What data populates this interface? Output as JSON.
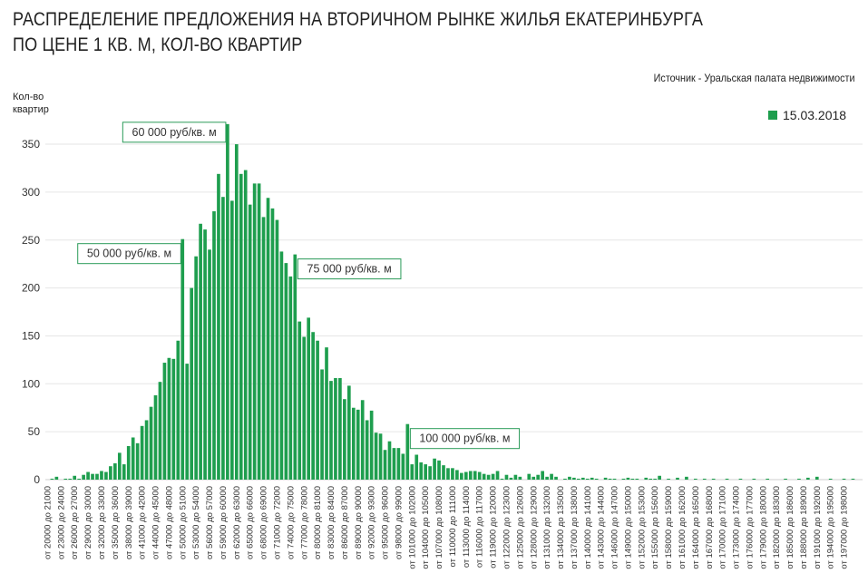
{
  "title_line1": "РАСПРЕДЕЛЕНИЕ ПРЕДЛОЖЕНИЯ НА ВТОРИЧНОМ РЫНКЕ ЖИЛЬЯ ЕКАТЕРИНБУРГА",
  "title_line2": "ПО ЦЕНЕ 1 КВ. М, КОЛ-ВО КВАРТИР",
  "source": "Источник - Уральская палата недвижимости",
  "colors": {
    "bar": "#1e9e4e",
    "annotation_border": "#2a9a58",
    "grid": "#e6e6e6"
  },
  "chart_data": {
    "type": "bar",
    "title": "РАСПРЕДЕЛЕНИЕ ПРЕДЛОЖЕНИЯ НА ВТОРИЧНОМ РЫНКЕ ЖИЛЬЯ ЕКАТЕРИНБУРГА ПО ЦЕНЕ 1 КВ. М, КОЛ-ВО КВАРТИР",
    "ylabel": "Кол-во квартир",
    "xlabel": "",
    "ylim": [
      0,
      370
    ],
    "yticks": [
      0,
      50,
      100,
      150,
      200,
      250,
      300,
      350
    ],
    "grid": true,
    "legend": {
      "position": "top-right",
      "entries": [
        "15.03.2018"
      ]
    },
    "bin_start": 20000,
    "bin_width": 1000,
    "label_every": 3,
    "series": [
      {
        "name": "15.03.2018",
        "values": [
          0,
          1,
          3,
          0,
          1,
          1,
          4,
          1,
          5,
          8,
          6,
          6,
          9,
          8,
          14,
          17,
          28,
          16,
          35,
          44,
          38,
          56,
          62,
          76,
          88,
          102,
          122,
          127,
          126,
          145,
          251,
          121,
          200,
          233,
          267,
          261,
          240,
          280,
          319,
          295,
          371,
          291,
          350,
          319,
          323,
          287,
          309,
          309,
          274,
          294,
          283,
          271,
          238,
          226,
          212,
          235,
          165,
          149,
          169,
          154,
          145,
          115,
          138,
          103,
          106,
          106,
          84,
          98,
          75,
          73,
          83,
          62,
          72,
          49,
          48,
          31,
          40,
          33,
          33,
          27,
          58,
          16,
          26,
          18,
          16,
          14,
          22,
          20,
          15,
          12,
          12,
          10,
          7,
          8,
          9,
          9,
          8,
          6,
          5,
          6,
          9,
          1,
          5,
          2,
          5,
          3,
          0,
          6,
          3,
          5,
          9,
          3,
          6,
          3,
          0,
          1,
          3,
          2,
          1,
          2,
          1,
          2,
          1,
          0,
          2,
          1,
          1,
          0,
          1,
          2,
          1,
          1,
          0,
          2,
          1,
          1,
          4,
          0,
          1,
          0,
          2,
          0,
          3,
          0,
          1,
          0,
          1,
          0,
          1,
          0,
          0,
          1,
          0,
          0,
          1,
          0,
          0,
          1,
          0,
          0,
          1,
          0,
          0,
          0,
          1,
          0,
          0,
          1,
          0,
          2,
          0,
          3,
          0,
          0,
          1,
          0,
          0,
          1,
          0,
          1
        ]
      }
    ],
    "x_tick_labels": [
      "от 20000 до 21000",
      "от 23000 до 24000",
      "от 26000 до 27000",
      "от 29000 до 30000",
      "от 32000 до 33000",
      "от 35000 до 36000",
      "от 38000 до 39000",
      "от 41000 до 42000",
      "от 44000 до 45000",
      "от 47000 до 48000",
      "от 50000 до 51000",
      "от 53000 до 54000",
      "от 56000 до 57000",
      "от 59000 до 60000",
      "от 62000 до 63000",
      "от 65000 до 66000",
      "от 68000 до 69000",
      "от 71000 до 72000",
      "от 74000 до 75000",
      "от 77000 до 78000",
      "от 80000 до 81000",
      "от 83000 до 84000",
      "от 86000 до 87000",
      "от 89000 до 90000",
      "от 92000 до 93000",
      "от 95000 до 96000",
      "от 98000 до 99000",
      "от 101000 до 102000",
      "от 104000 до 105000",
      "от 107000 до 108000",
      "от 110000 до 111000",
      "от 113000 до 114000",
      "от 116000 до 117000",
      "от 119000 до 120000",
      "от 122000 до 123000",
      "от 125000 до 126000",
      "от 128000 до 129000",
      "от 131000 до 132000",
      "от 134000 до 135000",
      "от 137000 до 138000",
      "от 140000 до 141000",
      "от 143000 до 144000",
      "от 146000 до 147000",
      "от 149000 до 150000",
      "от 152000 до 153000",
      "от 155000 до 156000",
      "от 158000 до 159000",
      "от 161000 до 162000",
      "от 164000 до 165000",
      "от 167000 до 168000",
      "от 170000 до 171000",
      "от 173000 до 174000",
      "от 176000 до 177000",
      "от 179000 до 180000",
      "от 182000 до 183000",
      "от 185000 до 186000",
      "от 188000 до 189000",
      "от 191000 до 192000",
      "от 194000 до 195000",
      "от 197000 до 198000"
    ],
    "annotations": [
      {
        "text": "60 000 руб/кв. м",
        "bin_index": 40,
        "side": "left"
      },
      {
        "text": "50 000 руб/кв. м",
        "bin_index": 30,
        "side": "left"
      },
      {
        "text": "75 000 руб/кв. м",
        "bin_index": 55,
        "side": "right"
      },
      {
        "text": "100 000 руб/кв. м",
        "bin_index": 80,
        "side": "right"
      }
    ]
  }
}
